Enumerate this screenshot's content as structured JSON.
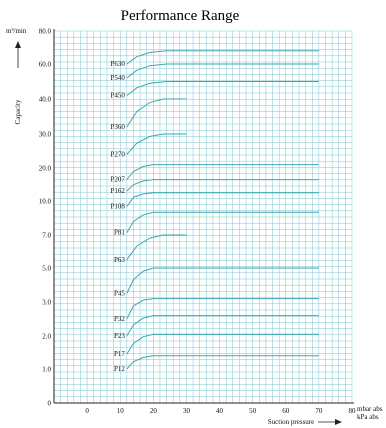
{
  "chart_data": {
    "type": "line",
    "title": "Performance Range",
    "ylabel": "Capacity",
    "yunit": "m³/min",
    "xlabel": "Suction pressure",
    "xunits": [
      "mbar abs",
      "kPa abs"
    ],
    "x_ticks": [
      "0",
      "10",
      "20",
      "30",
      "40",
      "50",
      "60",
      "70",
      "80"
    ],
    "y_ticks": [
      "0",
      "1.0",
      "2.0",
      "3.0",
      "5.0",
      "7.0",
      "10.0",
      "20.0",
      "30.0",
      "40.0",
      "60.0",
      "80.0"
    ],
    "grid": true,
    "series": [
      {
        "name": "P12",
        "ystart": "1.0",
        "yend": "1.4",
        "x": [
          12,
          14,
          17,
          20,
          70
        ],
        "yfrac": [
          0.0,
          0.55,
          0.88,
          1.0,
          1.0
        ]
      },
      {
        "name": "P17",
        "ystart": "1.45",
        "yend": "2.05",
        "x": [
          12,
          14,
          17,
          20,
          70
        ],
        "yfrac": [
          0.0,
          0.55,
          0.88,
          1.0,
          1.0
        ]
      },
      {
        "name": "P23",
        "ystart": "2.0",
        "yend": "2.6",
        "x": [
          12,
          14,
          17,
          20,
          70
        ],
        "yfrac": [
          0.0,
          0.55,
          0.88,
          1.0,
          1.0
        ]
      },
      {
        "name": "P32",
        "ystart": "2.5",
        "yend": "3.2",
        "x": [
          12,
          14,
          17,
          20,
          70
        ],
        "yfrac": [
          0.0,
          0.55,
          0.88,
          1.0,
          1.0
        ]
      },
      {
        "name": "P45",
        "ystart": "3.5",
        "yend": "5.0",
        "x": [
          12,
          14,
          17,
          20,
          70
        ],
        "yfrac": [
          0.0,
          0.55,
          0.88,
          1.0,
          1.0
        ]
      },
      {
        "name": "P63",
        "ystart": "5.5",
        "yend": "7.0",
        "x": [
          12,
          15,
          19,
          23,
          30
        ],
        "yfrac": [
          0.0,
          0.55,
          0.88,
          1.0,
          1.0
        ]
      },
      {
        "name": "P81",
        "ystart": "7.2",
        "yend": "9.0",
        "x": [
          12,
          14,
          17,
          20,
          70
        ],
        "yfrac": [
          0.0,
          0.55,
          0.88,
          1.0,
          1.0
        ]
      },
      {
        "name": "P108",
        "ystart": "9.5",
        "yend": "12.5",
        "x": [
          12,
          14,
          17,
          20,
          70
        ],
        "yfrac": [
          0.0,
          0.55,
          0.88,
          1.0,
          1.0
        ]
      },
      {
        "name": "P162",
        "ystart": "13.0",
        "yend": "16.5",
        "x": [
          12,
          14,
          17,
          20,
          70
        ],
        "yfrac": [
          0.0,
          0.55,
          0.88,
          1.0,
          1.0
        ]
      },
      {
        "name": "P207",
        "ystart": "16.5",
        "yend": "21.0",
        "x": [
          12,
          14,
          17,
          20,
          70
        ],
        "yfrac": [
          0.0,
          0.55,
          0.88,
          1.0,
          1.0
        ]
      },
      {
        "name": "P270",
        "ystart": "24.0",
        "yend": "30.0",
        "x": [
          12,
          15,
          19,
          23,
          30
        ],
        "yfrac": [
          0.0,
          0.55,
          0.88,
          1.0,
          1.0
        ]
      },
      {
        "name": "P360",
        "ystart": "32.0",
        "yend": "40.0",
        "x": [
          12,
          15,
          19,
          23,
          30
        ],
        "yfrac": [
          0.0,
          0.55,
          0.88,
          1.0,
          1.0
        ]
      },
      {
        "name": "P450",
        "ystart": "42.0",
        "yend": "50.0",
        "x": [
          12,
          15,
          19,
          24,
          70
        ],
        "yfrac": [
          0.0,
          0.55,
          0.88,
          1.0,
          1.0
        ]
      },
      {
        "name": "P540",
        "ystart": "52.0",
        "yend": "60.0",
        "x": [
          12,
          15,
          19,
          24,
          70
        ],
        "yfrac": [
          0.0,
          0.55,
          0.88,
          1.0,
          1.0
        ]
      },
      {
        "name": "P630",
        "ystart": "60.0",
        "yend": "68.0",
        "x": [
          12,
          15,
          19,
          24,
          70
        ],
        "yfrac": [
          0.0,
          0.55,
          0.88,
          1.0,
          1.0
        ]
      }
    ],
    "colors": {
      "grid": "#7cc7cf",
      "curve": "#3aa7b2",
      "axis": "#222222",
      "text": "#111111"
    }
  }
}
